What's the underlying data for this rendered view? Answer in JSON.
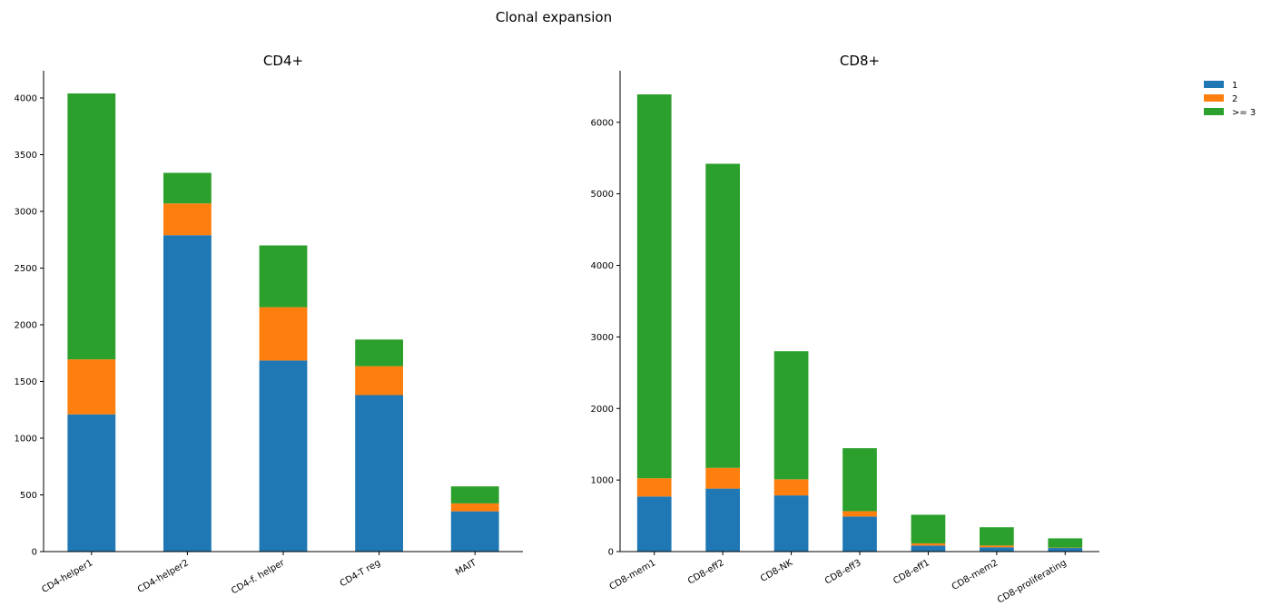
{
  "suptitle": "Clonal expansion",
  "legend": {
    "placement": "top-right",
    "entries": [
      {
        "label": "1",
        "color": "#1f77b4"
      },
      {
        "label": "2",
        "color": "#ff7f0e"
      },
      {
        "label": ">= 3",
        "color": "#2ca02c"
      }
    ]
  },
  "chart_data": [
    {
      "type": "bar",
      "stacked": true,
      "title": "CD4+",
      "xlabel": "",
      "ylabel": "",
      "grid": false,
      "ylim": [
        0,
        4240
      ],
      "yticks": [
        0,
        500,
        1000,
        1500,
        2000,
        2500,
        3000,
        3500,
        4000
      ],
      "categories": [
        "CD4-helper1",
        "CD4-helper2",
        "CD4-f. helper",
        "CD4-T reg",
        "MAIT"
      ],
      "series": [
        {
          "name": "1",
          "color": "#1f77b4",
          "values": [
            1210,
            2790,
            1685,
            1380,
            355
          ]
        },
        {
          "name": "2",
          "color": "#ff7f0e",
          "values": [
            485,
            280,
            470,
            255,
            70
          ]
        },
        {
          "name": ">= 3",
          "color": "#2ca02c",
          "values": [
            2345,
            270,
            545,
            235,
            150
          ]
        }
      ]
    },
    {
      "type": "bar",
      "stacked": true,
      "title": "CD8+",
      "xlabel": "",
      "ylabel": "",
      "grid": false,
      "ylim": [
        0,
        6720
      ],
      "yticks": [
        0,
        1000,
        2000,
        3000,
        4000,
        5000,
        6000
      ],
      "categories": [
        "CD8-mem1",
        "CD8-eff2",
        "CD8-NK",
        "CD8-eff3",
        "CD8-eff1",
        "CD8-mem2",
        "CD8-proliferating"
      ],
      "series": [
        {
          "name": "1",
          "color": "#1f77b4",
          "values": [
            770,
            880,
            785,
            490,
            85,
            60,
            50
          ]
        },
        {
          "name": "2",
          "color": "#ff7f0e",
          "values": [
            255,
            290,
            225,
            75,
            30,
            25,
            5
          ]
        },
        {
          "name": ">= 3",
          "color": "#2ca02c",
          "values": [
            5365,
            4250,
            1790,
            880,
            400,
            255,
            130
          ]
        }
      ]
    }
  ]
}
